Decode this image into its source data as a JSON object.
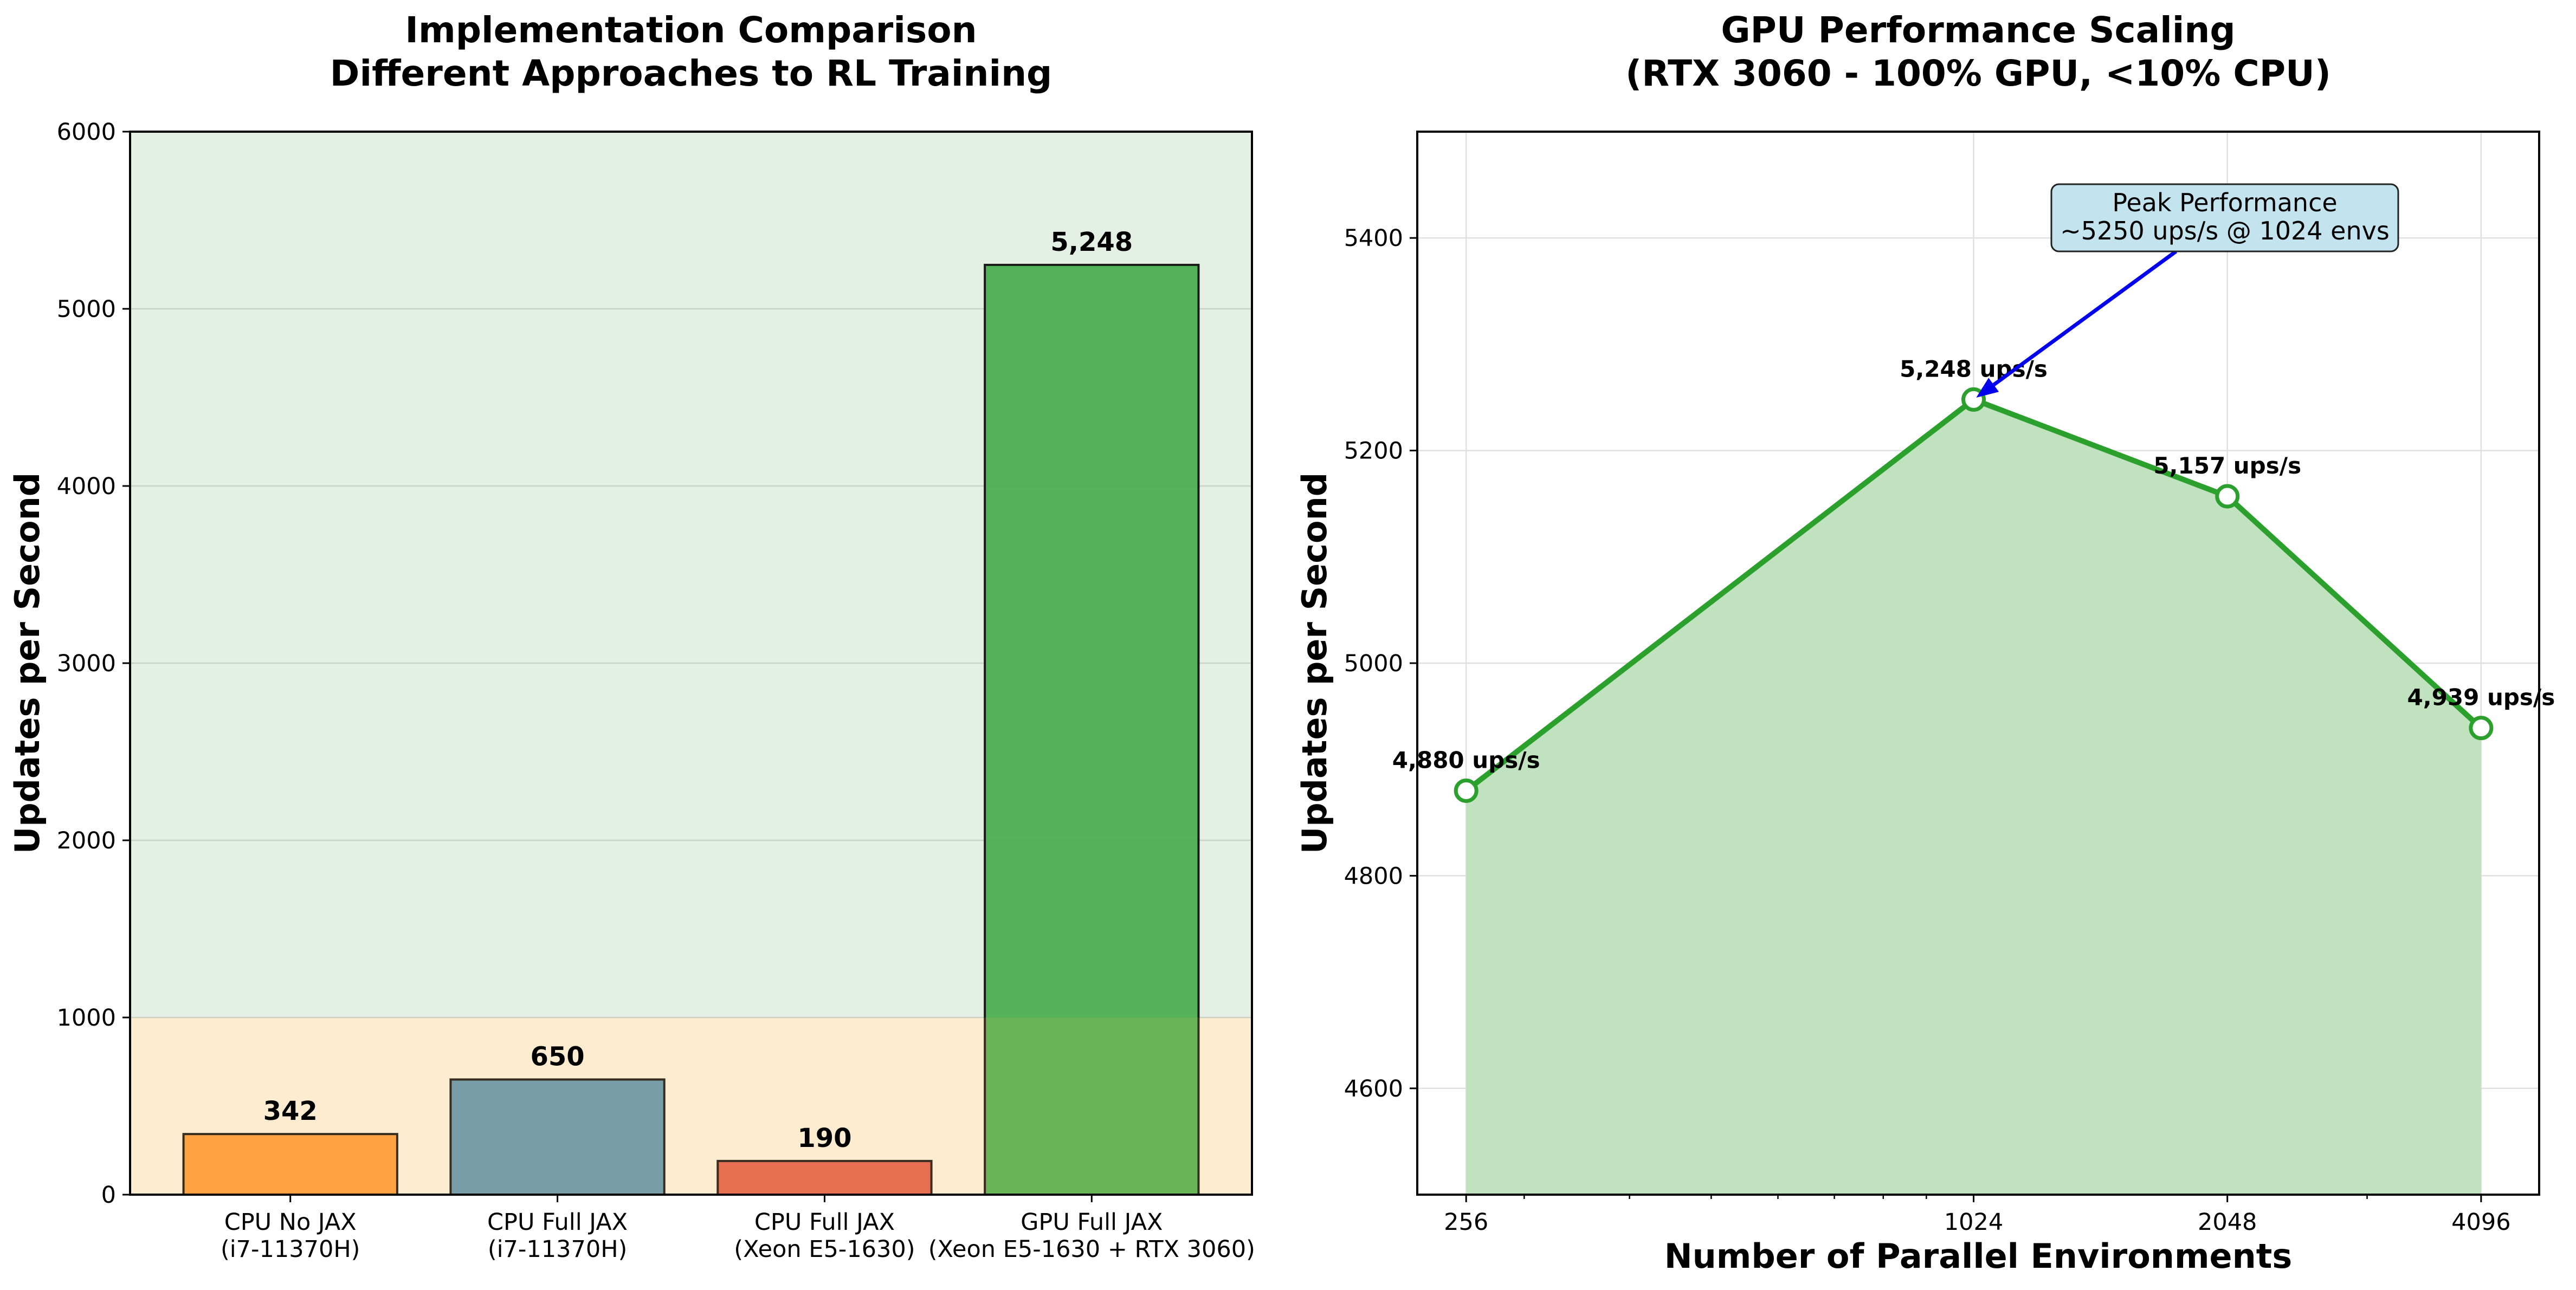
{
  "chart_data": [
    {
      "type": "bar",
      "title": [
        "Implementation Comparison",
        "Different Approaches to RL Training"
      ],
      "ylabel": "Updates per Second",
      "xlabel": "",
      "ylim": [
        0,
        6000
      ],
      "yticks": [
        0,
        1000,
        2000,
        3000,
        4000,
        5000,
        6000
      ],
      "grid": true,
      "background_bands": [
        {
          "from": 0,
          "to": 1000,
          "color": "#fdf3e2"
        },
        {
          "from": 1000,
          "to": 6000,
          "color": "#e5f0e4"
        }
      ],
      "categories": [
        [
          "CPU No JAX",
          "(i7-11370H)"
        ],
        [
          "CPU Full JAX",
          "(i7-11370H)"
        ],
        [
          "CPU Full JAX",
          "(Xeon E5-1630)"
        ],
        [
          "GPU Full JAX",
          "(Xeon E5-1630 + RTX 3060)"
        ]
      ],
      "values": [
        342,
        650,
        190,
        5248
      ],
      "value_labels": [
        "342",
        "650",
        "190",
        "5,248"
      ],
      "colors": [
        "#ff9a3b",
        "#5f93b0",
        "#e15c4b",
        "#4caf50"
      ]
    },
    {
      "type": "area",
      "title": [
        "GPU Performance Scaling",
        "(RTX 3060 - 100% GPU, <10% CPU)"
      ],
      "ylabel": "Updates per Second",
      "xlabel": "Number of Parallel Environments",
      "xscale": "log",
      "x": [
        256,
        1024,
        2048,
        4096
      ],
      "xticks": [
        "256",
        "1024",
        "2048",
        "4096"
      ],
      "xlim": [
        224,
        4800
      ],
      "y": [
        4880,
        5248,
        5157,
        4939
      ],
      "ylim": [
        4500,
        5500
      ],
      "yticks": [
        4600,
        4800,
        5000,
        5200,
        5400
      ],
      "grid": true,
      "point_labels": [
        "4,880 ups/s",
        "5,248 ups/s",
        "5,157 ups/s",
        "4,939 ups/s"
      ],
      "line_color": "#2ca02c",
      "fill_color": "#c0e2bf",
      "annotation": {
        "text": [
          "Peak Performance",
          "~5250 ups/s @ 1024 envs"
        ],
        "target_x": 1024,
        "target_y": 5248,
        "box_color": "#c3e3ee",
        "arrow_color": "#0000ee"
      }
    }
  ]
}
